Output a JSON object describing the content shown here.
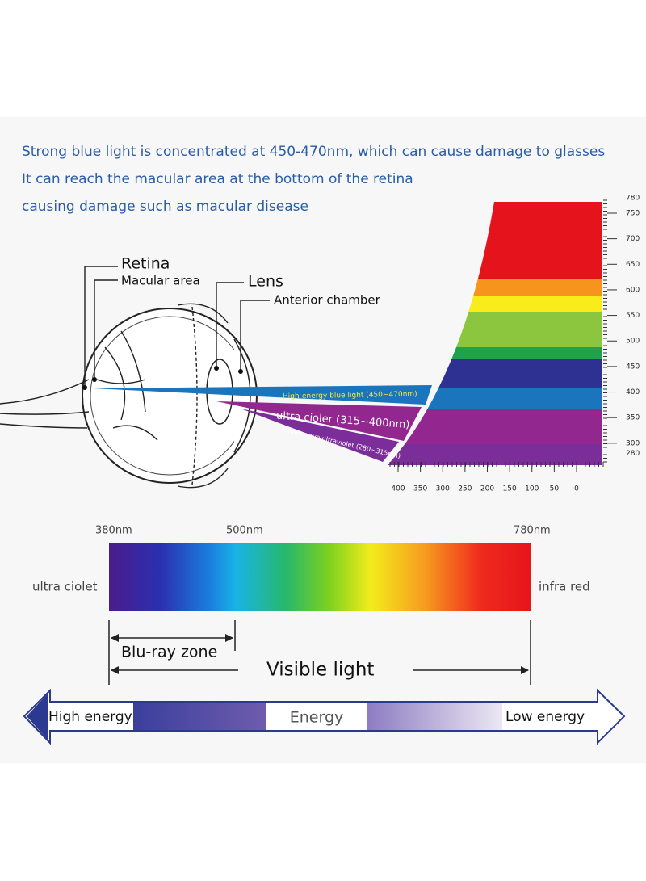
{
  "header": {
    "lines": [
      "Strong blue light is concentrated at 450-470nm, which can cause damage to glasses",
      "It can reach the macular area at the bottom of the retina",
      "causing damage such as macular disease"
    ]
  },
  "eye_labels": [
    "Retina",
    "Macular area",
    "Lens",
    "Anterior chamber"
  ],
  "beams": [
    "High-energy blue light (450~470nm)",
    "ultra cioler (315~400nm)",
    "Short-wave ultraviolet (280~315nm)"
  ],
  "wavelength_scale": [
    780,
    750,
    700,
    650,
    600,
    550,
    500,
    450,
    400,
    350,
    300,
    280
  ],
  "bottom_scale": [
    400,
    350,
    300,
    250,
    200,
    150,
    100,
    50,
    0
  ],
  "spectrum": {
    "marks": [
      "380nm",
      "500nm",
      "780nm"
    ],
    "left_label": "ultra ciolet",
    "right_label": "infra red",
    "blu_ray": "Blu-ray zone",
    "visible": "Visible light"
  },
  "energy": {
    "high": "High energy",
    "middle": "Energy",
    "low": "Low energy"
  }
}
